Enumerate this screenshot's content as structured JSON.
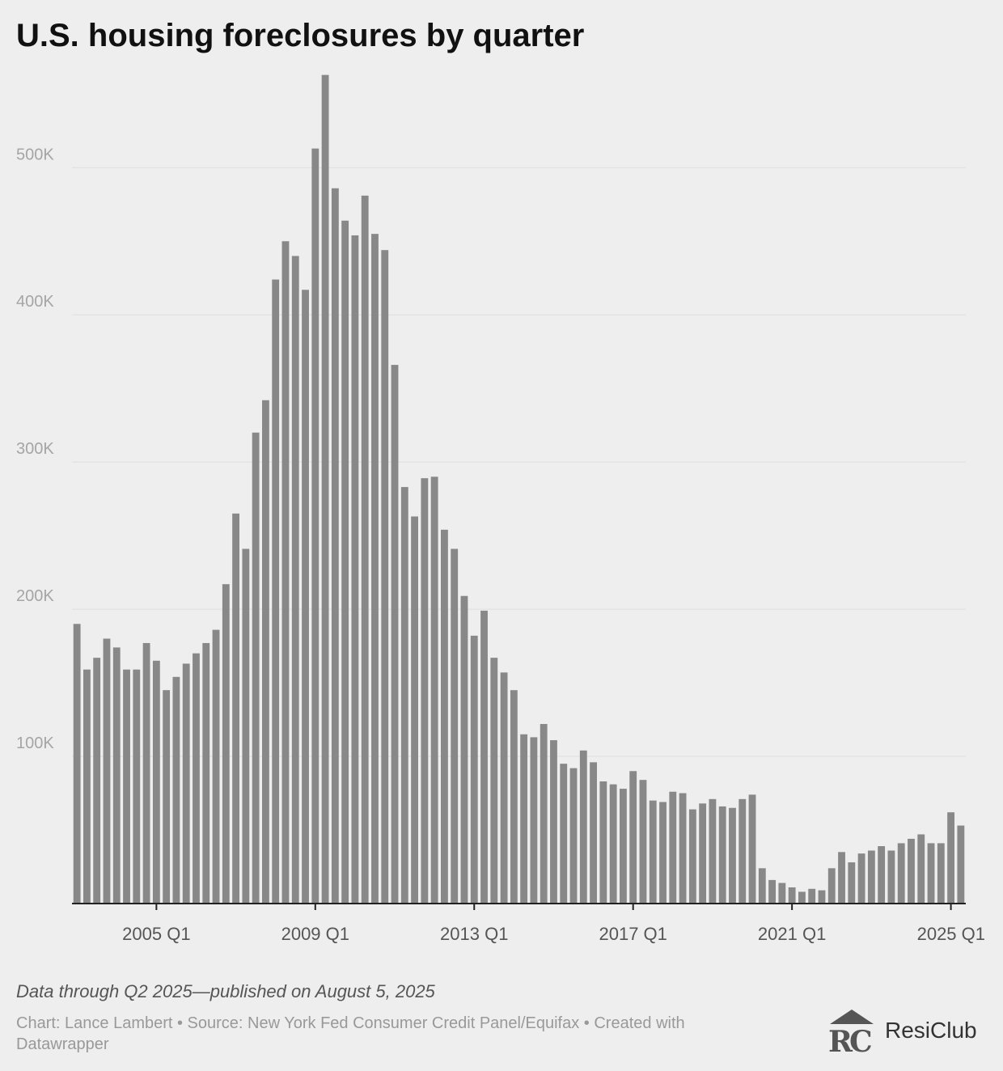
{
  "title": "U.S. housing foreclosures by quarter",
  "note": "Data through Q2 2025—published on August 5, 2025",
  "credits": "Chart: Lance Lambert • Source: New York Fed Consumer Credit Panel/Equifax • Created with Datawrapper",
  "logo": {
    "name": "ResiClub",
    "icon": "resiclub-rc-logo-icon"
  },
  "colors": {
    "bar": "#888888",
    "grid": "#dddddd",
    "axis": "#222222",
    "tick_label": "#a5a5a5",
    "x_label": "#555555"
  },
  "chart_data": {
    "type": "bar",
    "title": "U.S. housing foreclosures by quarter",
    "xlabel": "",
    "ylabel": "",
    "x_start": "2003 Q1",
    "categories": [
      "2003 Q1",
      "2003 Q2",
      "2003 Q3",
      "2003 Q4",
      "2004 Q1",
      "2004 Q2",
      "2004 Q3",
      "2004 Q4",
      "2005 Q1",
      "2005 Q2",
      "2005 Q3",
      "2005 Q4",
      "2006 Q1",
      "2006 Q2",
      "2006 Q3",
      "2006 Q4",
      "2007 Q1",
      "2007 Q2",
      "2007 Q3",
      "2007 Q4",
      "2008 Q1",
      "2008 Q2",
      "2008 Q3",
      "2008 Q4",
      "2009 Q1",
      "2009 Q2",
      "2009 Q3",
      "2009 Q4",
      "2010 Q1",
      "2010 Q2",
      "2010 Q3",
      "2010 Q4",
      "2011 Q1",
      "2011 Q2",
      "2011 Q3",
      "2011 Q4",
      "2012 Q1",
      "2012 Q2",
      "2012 Q3",
      "2012 Q4",
      "2013 Q1",
      "2013 Q2",
      "2013 Q3",
      "2013 Q4",
      "2014 Q1",
      "2014 Q2",
      "2014 Q3",
      "2014 Q4",
      "2015 Q1",
      "2015 Q2",
      "2015 Q3",
      "2015 Q4",
      "2016 Q1",
      "2016 Q2",
      "2016 Q3",
      "2016 Q4",
      "2017 Q1",
      "2017 Q2",
      "2017 Q3",
      "2017 Q4",
      "2018 Q1",
      "2018 Q2",
      "2018 Q3",
      "2018 Q4",
      "2019 Q1",
      "2019 Q2",
      "2019 Q3",
      "2019 Q4",
      "2020 Q1",
      "2020 Q2",
      "2020 Q3",
      "2020 Q4",
      "2021 Q1",
      "2021 Q2",
      "2021 Q3",
      "2021 Q4",
      "2022 Q1",
      "2022 Q2",
      "2022 Q3",
      "2022 Q4",
      "2023 Q1",
      "2023 Q2",
      "2023 Q3",
      "2023 Q4",
      "2024 Q1",
      "2024 Q2",
      "2024 Q3",
      "2024 Q4",
      "2025 Q1",
      "2025 Q2"
    ],
    "values": [
      190000,
      159000,
      167000,
      180000,
      174000,
      159000,
      159000,
      177000,
      165000,
      145000,
      154000,
      163000,
      170000,
      177000,
      186000,
      217000,
      265000,
      241000,
      320000,
      342000,
      424000,
      450000,
      440000,
      417000,
      513000,
      563000,
      486000,
      464000,
      454000,
      481000,
      455000,
      444000,
      366000,
      283000,
      263000,
      289000,
      290000,
      254000,
      241000,
      209000,
      182000,
      199000,
      167000,
      157000,
      145000,
      115000,
      113000,
      122000,
      111000,
      95000,
      92000,
      104000,
      96000,
      83000,
      81000,
      78000,
      90000,
      84000,
      70000,
      69000,
      76000,
      75000,
      64000,
      68000,
      71000,
      66000,
      65000,
      71000,
      74000,
      24000,
      16000,
      14000,
      11000,
      8000,
      10000,
      9000,
      24000,
      35000,
      28000,
      34000,
      36000,
      39000,
      36000,
      41000,
      44000,
      47000,
      41000,
      41000,
      62000,
      53000
    ],
    "ylim": [
      0,
      565000
    ],
    "yticks": [
      {
        "value": 100000,
        "label": "100K"
      },
      {
        "value": 200000,
        "label": "200K"
      },
      {
        "value": 300000,
        "label": "300K"
      },
      {
        "value": 400000,
        "label": "400K"
      },
      {
        "value": 500000,
        "label": "500K"
      }
    ],
    "xticks": [
      {
        "category": "2005 Q1",
        "label": "2005 Q1"
      },
      {
        "category": "2009 Q1",
        "label": "2009 Q1"
      },
      {
        "category": "2013 Q1",
        "label": "2013 Q1"
      },
      {
        "category": "2017 Q1",
        "label": "2017 Q1"
      },
      {
        "category": "2021 Q1",
        "label": "2021 Q1"
      },
      {
        "category": "2025 Q1",
        "label": "2025 Q1"
      }
    ],
    "grid": true,
    "legend": "none"
  }
}
